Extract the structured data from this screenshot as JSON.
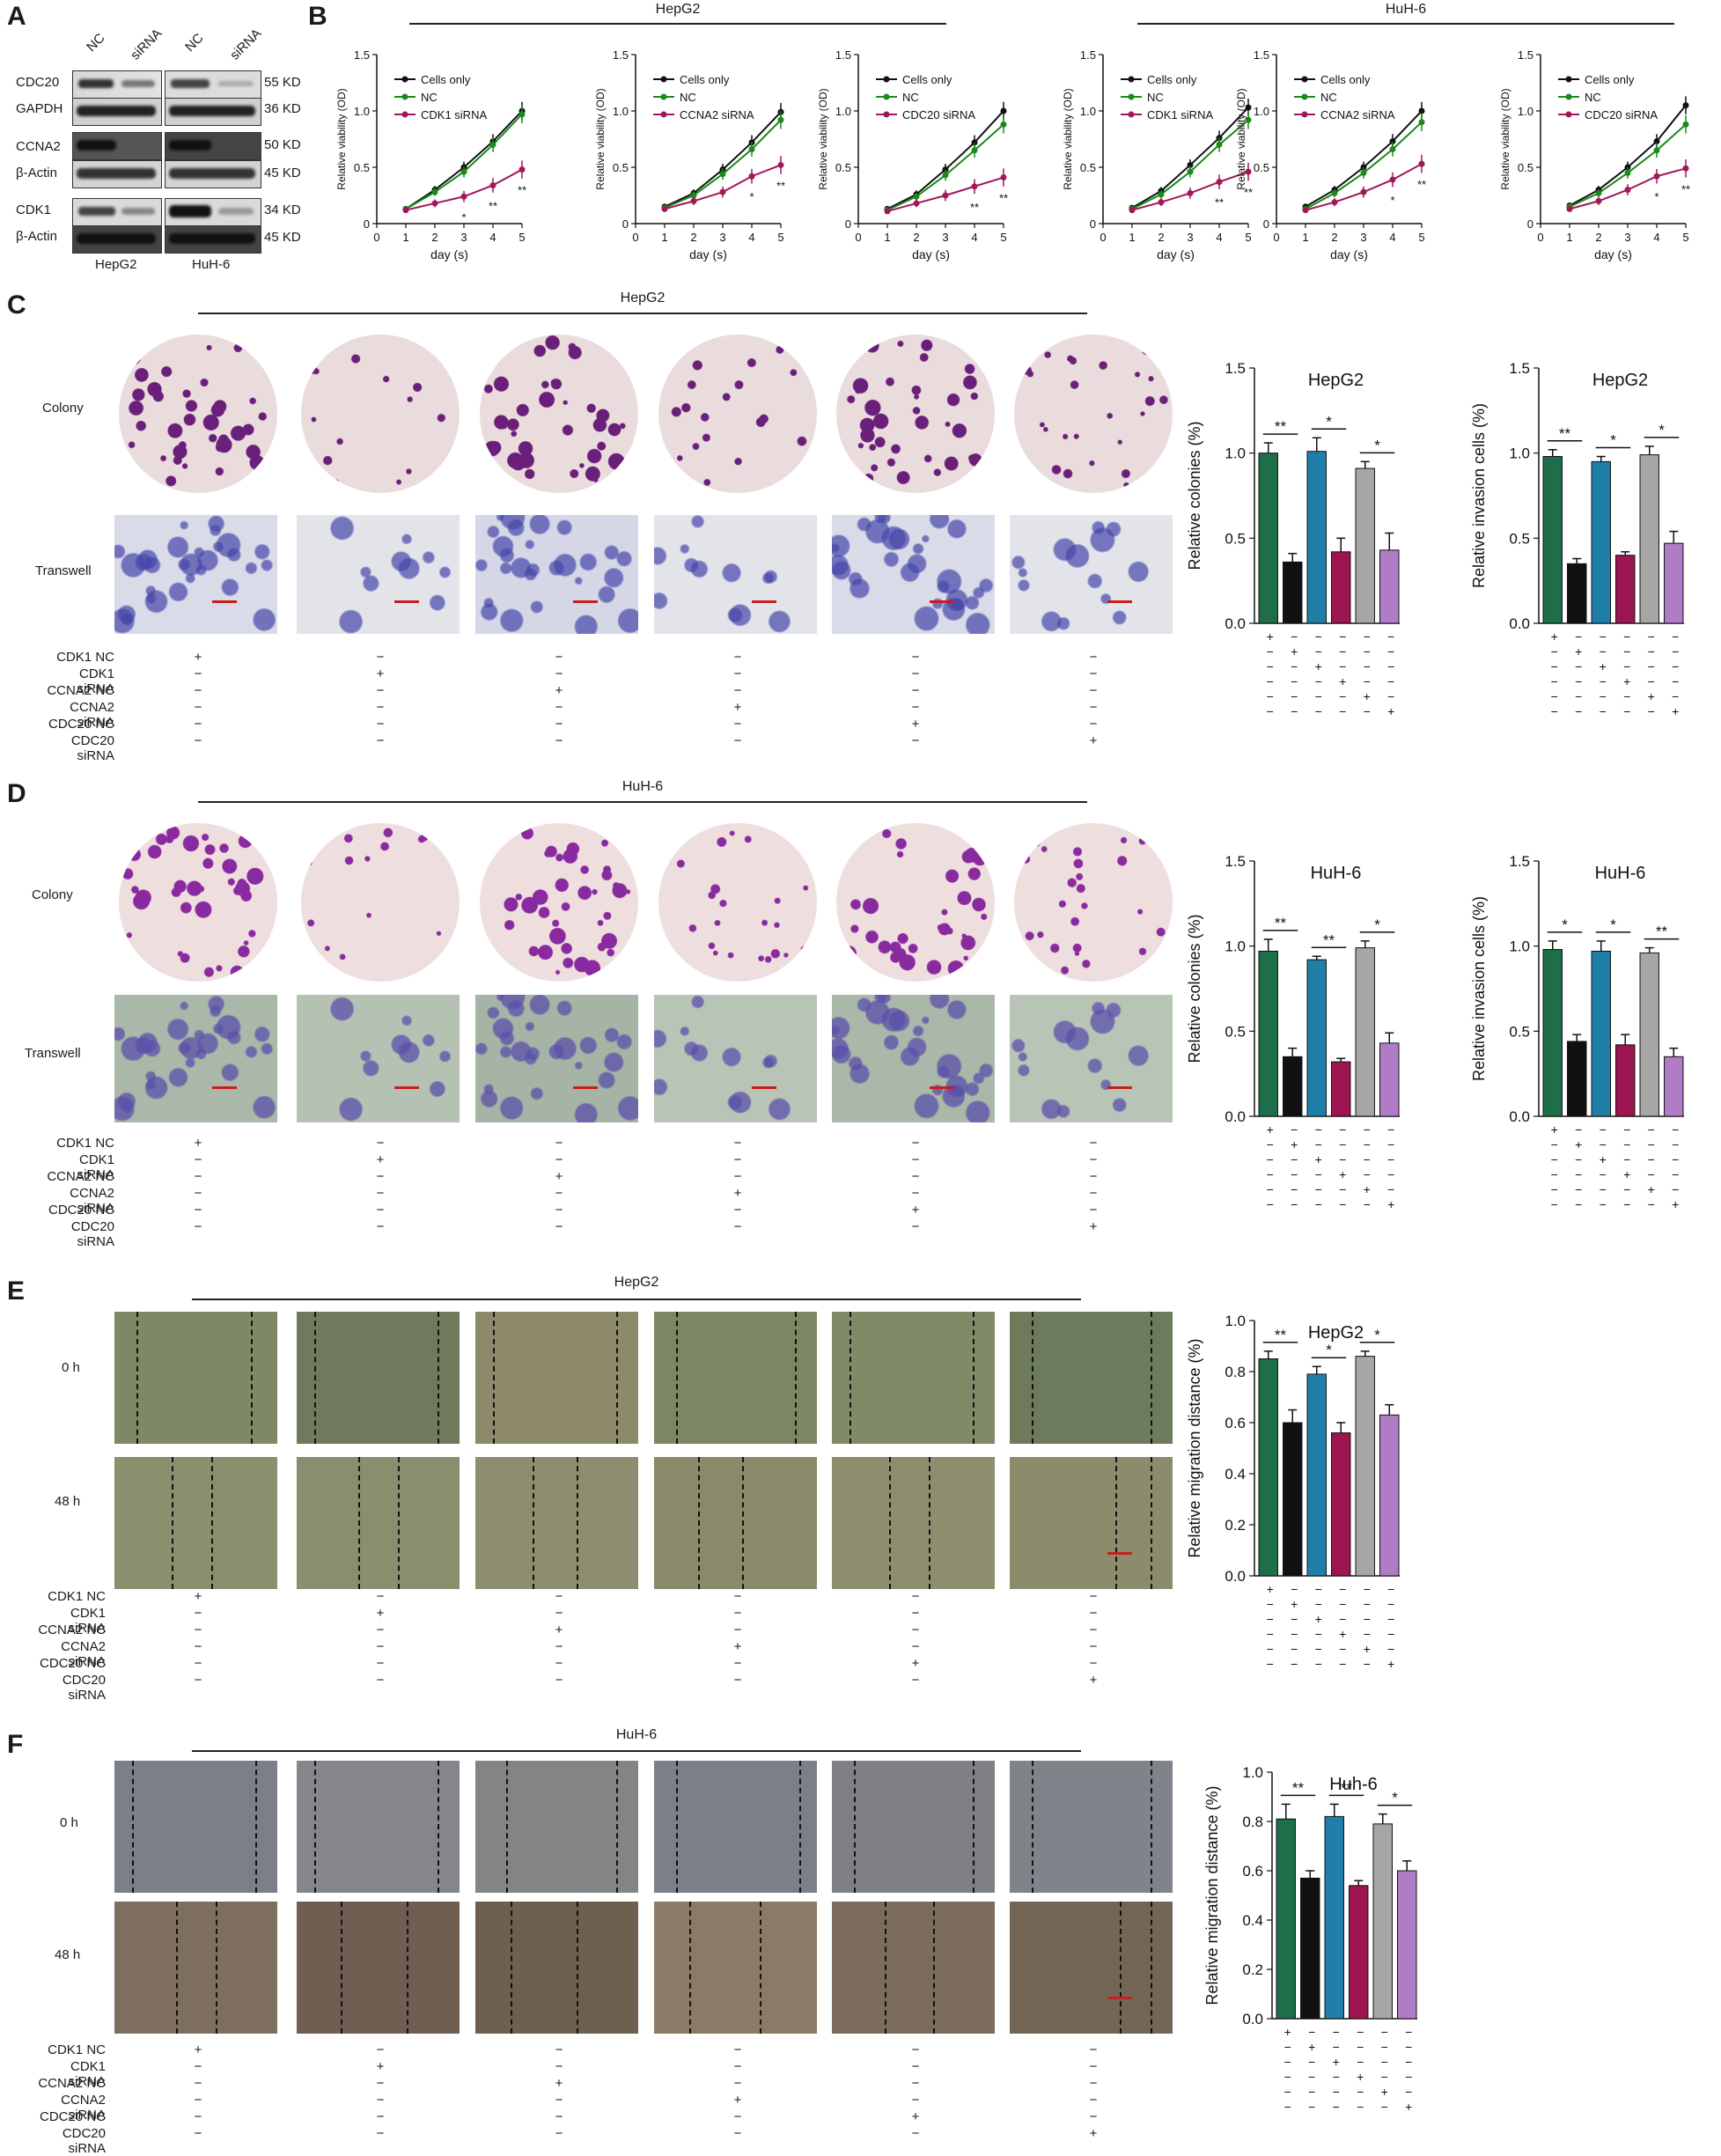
{
  "panel_letters": [
    "A",
    "B",
    "C",
    "D",
    "E",
    "F"
  ],
  "colors": {
    "cells_only": "#111111",
    "nc": "#1a8a1a",
    "sirna": "#a0185a",
    "bar_green": "#1e6e4a",
    "bar_black": "#111111",
    "bar_blue": "#1f7fa8",
    "bar_red": "#9c1550",
    "bar_gray": "#a6a6a6",
    "bar_purple": "#b07cc6"
  },
  "western_blot": {
    "lane_headers": [
      "NC",
      "siRNA",
      "NC",
      "siRNA"
    ],
    "rows": [
      {
        "protein": "CDC20",
        "size": "55 KD"
      },
      {
        "protein": "GAPDH",
        "size": "36 KD"
      },
      {
        "protein": "CCNA2",
        "size": "50 KD"
      },
      {
        "protein": "β-Actin",
        "size": "45 KD"
      },
      {
        "protein": "CDK1",
        "size": "34 KD"
      },
      {
        "protein": "β-Actin",
        "size": "45 KD"
      }
    ],
    "cell_lines": [
      "HepG2",
      "HuH-6"
    ]
  },
  "panel_b_headers": [
    "HepG2",
    "HuH-6"
  ],
  "panel_c_header": "HepG2",
  "panel_d_header": "HuH-6",
  "panel_e_header": "HepG2",
  "panel_f_header": "HuH-6",
  "row_labels": {
    "colony": "Colony",
    "transwell": "Transwell",
    "t0": "0 h",
    "t48": "48 h"
  },
  "conditions": [
    "CDK1 NC",
    "CDK1 siRNA",
    "CCNA2 NC",
    "CCNA2 siRNA",
    "CDC20 NC",
    "CDC20 siRNA"
  ],
  "plus": "+",
  "minus": "−",
  "chart_data": [
    {
      "type": "line",
      "panel": "B",
      "title": "",
      "ylabel": "Relative viability (OD)",
      "xlabel": "day (s)",
      "x": [
        1,
        2,
        3,
        4,
        5
      ],
      "xlim": [
        0,
        5
      ],
      "ylim": [
        0,
        1.5
      ],
      "xticks": [
        "0",
        "1",
        "2",
        "3",
        "4",
        "5"
      ],
      "yticks": [
        "0",
        "0.5",
        "1.0",
        "1.5"
      ],
      "series": [
        {
          "name": "Cells only",
          "values": [
            0.13,
            0.3,
            0.5,
            0.73,
            1.0
          ]
        },
        {
          "name": "NC",
          "values": [
            0.13,
            0.28,
            0.46,
            0.7,
            0.97
          ]
        },
        {
          "name": "CDK1 siRNA",
          "values": [
            0.12,
            0.18,
            0.24,
            0.34,
            0.48
          ]
        }
      ],
      "significance": [
        "",
        "",
        "*",
        "**",
        "**"
      ]
    },
    {
      "type": "line",
      "panel": "B",
      "title": "",
      "ylabel": "Relative viability (OD)",
      "xlabel": "day (s)",
      "x": [
        1,
        2,
        3,
        4,
        5
      ],
      "xlim": [
        0,
        5
      ],
      "ylim": [
        0,
        1.5
      ],
      "xticks": [
        "0",
        "1",
        "2",
        "3",
        "4",
        "5"
      ],
      "yticks": [
        "0",
        "0.5",
        "1.0",
        "1.5"
      ],
      "series": [
        {
          "name": "Cells only",
          "values": [
            0.15,
            0.27,
            0.48,
            0.72,
            0.99
          ]
        },
        {
          "name": "NC",
          "values": [
            0.14,
            0.25,
            0.44,
            0.66,
            0.92
          ]
        },
        {
          "name": "CCNA2 siRNA",
          "values": [
            0.13,
            0.2,
            0.28,
            0.42,
            0.52
          ]
        }
      ],
      "significance": [
        "",
        "",
        "",
        "*",
        "**"
      ]
    },
    {
      "type": "line",
      "panel": "B",
      "title": "",
      "ylabel": "Relative viability (OD)",
      "xlabel": "day (s)",
      "x": [
        1,
        2,
        3,
        4,
        5
      ],
      "xlim": [
        0,
        5
      ],
      "ylim": [
        0,
        1.5
      ],
      "xticks": [
        "0",
        "1",
        "2",
        "3",
        "4",
        "5"
      ],
      "yticks": [
        "0",
        "0.5",
        "1.0",
        "1.5"
      ],
      "series": [
        {
          "name": "Cells only",
          "values": [
            0.13,
            0.26,
            0.48,
            0.72,
            1.0
          ]
        },
        {
          "name": "NC",
          "values": [
            0.12,
            0.24,
            0.43,
            0.65,
            0.88
          ]
        },
        {
          "name": "CDC20 siRNA",
          "values": [
            0.11,
            0.18,
            0.25,
            0.33,
            0.41
          ]
        }
      ],
      "significance": [
        "",
        "",
        "",
        "**",
        "**"
      ]
    },
    {
      "type": "line",
      "panel": "B",
      "title": "",
      "ylabel": "Relative viability (OD)",
      "xlabel": "day (s)",
      "x": [
        1,
        2,
        3,
        4,
        5
      ],
      "xlim": [
        0,
        5
      ],
      "ylim": [
        0,
        1.5
      ],
      "xticks": [
        "0",
        "1",
        "2",
        "3",
        "4",
        "5"
      ],
      "yticks": [
        "0",
        "0.5",
        "1.0",
        "1.5"
      ],
      "series": [
        {
          "name": "Cells only",
          "values": [
            0.14,
            0.29,
            0.52,
            0.76,
            1.03
          ]
        },
        {
          "name": "NC",
          "values": [
            0.13,
            0.26,
            0.46,
            0.7,
            0.92
          ]
        },
        {
          "name": "CDK1 siRNA",
          "values": [
            0.12,
            0.19,
            0.27,
            0.37,
            0.46
          ]
        }
      ],
      "significance": [
        "",
        "",
        "",
        "**",
        "**"
      ]
    },
    {
      "type": "line",
      "panel": "B",
      "title": "",
      "ylabel": "Relative viability (OD)",
      "xlabel": "day (s)",
      "x": [
        1,
        2,
        3,
        4,
        5
      ],
      "xlim": [
        0,
        5
      ],
      "ylim": [
        0,
        1.5
      ],
      "xticks": [
        "0",
        "1",
        "2",
        "3",
        "4",
        "5"
      ],
      "yticks": [
        "0",
        "0.5",
        "1.0",
        "1.5"
      ],
      "series": [
        {
          "name": "Cells only",
          "values": [
            0.15,
            0.3,
            0.5,
            0.73,
            1.0
          ]
        },
        {
          "name": "NC",
          "values": [
            0.13,
            0.27,
            0.45,
            0.66,
            0.9
          ]
        },
        {
          "name": "CCNA2 siRNA",
          "values": [
            0.12,
            0.19,
            0.28,
            0.39,
            0.53
          ]
        }
      ],
      "significance": [
        "",
        "",
        "",
        "*",
        "**"
      ]
    },
    {
      "type": "line",
      "panel": "B",
      "title": "",
      "ylabel": "Relative viability (OD)",
      "xlabel": "day (s)",
      "x": [
        1,
        2,
        3,
        4,
        5
      ],
      "xlim": [
        0,
        5
      ],
      "ylim": [
        0,
        1.5
      ],
      "xticks": [
        "0",
        "1",
        "2",
        "3",
        "4",
        "5"
      ],
      "yticks": [
        "0",
        "0.5",
        "1.0",
        "1.5"
      ],
      "series": [
        {
          "name": "Cells only",
          "values": [
            0.16,
            0.3,
            0.5,
            0.73,
            1.05
          ]
        },
        {
          "name": "NC",
          "values": [
            0.15,
            0.27,
            0.45,
            0.65,
            0.88
          ]
        },
        {
          "name": "CDC20 siRNA",
          "values": [
            0.13,
            0.2,
            0.3,
            0.42,
            0.49
          ]
        }
      ],
      "significance": [
        "",
        "",
        "",
        "*",
        "**"
      ]
    },
    {
      "type": "bar",
      "panel": "C",
      "title": "HepG2",
      "ylabel": "Relative colonies (%)",
      "ylim": [
        0,
        1.5
      ],
      "yticks": [
        "0.0",
        "0.5",
        "1.0",
        "1.5"
      ],
      "values": [
        1.0,
        0.36,
        1.01,
        0.42,
        0.91,
        0.43
      ],
      "errors": [
        0.06,
        0.05,
        0.08,
        0.08,
        0.04,
        0.1
      ],
      "brackets": [
        {
          "from": 0,
          "to": 1,
          "label": "**"
        },
        {
          "from": 2,
          "to": 3,
          "label": "*"
        },
        {
          "from": 4,
          "to": 5,
          "label": "*"
        }
      ]
    },
    {
      "type": "bar",
      "panel": "C",
      "title": "HepG2",
      "ylabel": "Relative invasion cells (%)",
      "ylim": [
        0,
        1.5
      ],
      "yticks": [
        "0.0",
        "0.5",
        "1.0",
        "1.5"
      ],
      "values": [
        0.98,
        0.35,
        0.95,
        0.4,
        0.99,
        0.47
      ],
      "errors": [
        0.04,
        0.03,
        0.03,
        0.02,
        0.05,
        0.07
      ],
      "brackets": [
        {
          "from": 0,
          "to": 1,
          "label": "**"
        },
        {
          "from": 2,
          "to": 3,
          "label": "*"
        },
        {
          "from": 4,
          "to": 5,
          "label": "*"
        }
      ]
    },
    {
      "type": "bar",
      "panel": "D",
      "title": "HuH-6",
      "ylabel": "Relative colonies (%)",
      "ylim": [
        0,
        1.5
      ],
      "yticks": [
        "0.0",
        "0.5",
        "1.0",
        "1.5"
      ],
      "values": [
        0.97,
        0.35,
        0.92,
        0.32,
        0.99,
        0.43
      ],
      "errors": [
        0.07,
        0.05,
        0.02,
        0.02,
        0.04,
        0.06
      ],
      "brackets": [
        {
          "from": 0,
          "to": 1,
          "label": "**"
        },
        {
          "from": 2,
          "to": 3,
          "label": "**"
        },
        {
          "from": 4,
          "to": 5,
          "label": "*"
        }
      ]
    },
    {
      "type": "bar",
      "panel": "D",
      "title": "HuH-6",
      "ylabel": "Relative invasion cells (%)",
      "ylim": [
        0,
        1.5
      ],
      "yticks": [
        "0.0",
        "0.5",
        "1.0",
        "1.5"
      ],
      "values": [
        0.98,
        0.44,
        0.97,
        0.42,
        0.96,
        0.35
      ],
      "errors": [
        0.05,
        0.04,
        0.06,
        0.06,
        0.03,
        0.05
      ],
      "brackets": [
        {
          "from": 0,
          "to": 1,
          "label": "*"
        },
        {
          "from": 2,
          "to": 3,
          "label": "*"
        },
        {
          "from": 4,
          "to": 5,
          "label": "**"
        }
      ]
    },
    {
      "type": "bar",
      "panel": "E",
      "title": "HepG2",
      "ylabel": "Relative migration distance (%)",
      "ylim": [
        0,
        1.0
      ],
      "yticks": [
        "0.0",
        "0.2",
        "0.4",
        "0.6",
        "0.8",
        "1.0"
      ],
      "values": [
        0.85,
        0.6,
        0.79,
        0.56,
        0.86,
        0.63
      ],
      "errors": [
        0.03,
        0.05,
        0.03,
        0.04,
        0.02,
        0.04
      ],
      "brackets": [
        {
          "from": 0,
          "to": 1,
          "label": "**"
        },
        {
          "from": 2,
          "to": 3,
          "label": "*"
        },
        {
          "from": 4,
          "to": 5,
          "label": "*"
        }
      ]
    },
    {
      "type": "bar",
      "panel": "F",
      "title": "Huh-6",
      "ylabel": "Relative migration distance (%)",
      "ylim": [
        0,
        1.0
      ],
      "yticks": [
        "0.0",
        "0.2",
        "0.4",
        "0.6",
        "0.8",
        "1.0"
      ],
      "values": [
        0.81,
        0.57,
        0.82,
        0.54,
        0.79,
        0.6
      ],
      "errors": [
        0.06,
        0.03,
        0.05,
        0.02,
        0.04,
        0.04
      ],
      "brackets": [
        {
          "from": 0,
          "to": 1,
          "label": "**"
        },
        {
          "from": 2,
          "to": 3,
          "label": "**"
        },
        {
          "from": 4,
          "to": 5,
          "label": "*"
        }
      ]
    }
  ]
}
